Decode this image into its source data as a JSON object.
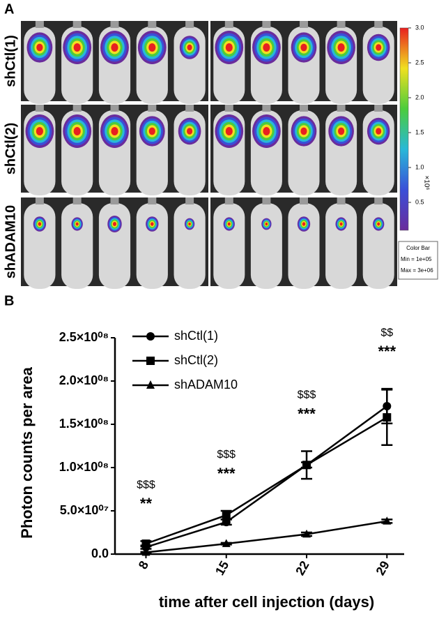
{
  "panel_a": {
    "label": "A",
    "row_labels": [
      "shCtl(1)",
      "shCtl(2)",
      "shADAM10"
    ],
    "colorbar": {
      "lim": [
        0.1,
        3.0
      ],
      "ticks": [
        0.5,
        {
          "value": 1,
          "label": "1.0"
        },
        1.5,
        {
          "value": 2,
          "label": "2.0"
        },
        2.5,
        {
          "value": 3,
          "label": "3.0"
        }
      ],
      "unit": "×10⁶",
      "title": "Color Bar",
      "min_text": "Min = 1e+05",
      "max_text": "Max = 3e+06"
    }
  },
  "chart_data": {
    "type": "line",
    "panel_label": "B",
    "ylabel": "Photon counts per area",
    "xlabel": "time after cell injection (days)",
    "x": [
      8,
      15,
      22,
      29
    ],
    "xlim": [
      5.3,
      30.5
    ],
    "xticks": [
      8,
      15,
      22,
      29
    ],
    "ylim": [
      0,
      250000000
    ],
    "yticks": [
      {
        "value": 0,
        "label": "0.0"
      },
      {
        "value": 50000000,
        "label": "5.0×10⁰⁷"
      },
      {
        "value": 100000000,
        "label": "1.0×10⁰⁸"
      },
      {
        "value": 150000000,
        "label": "1.5×10⁰⁸"
      },
      {
        "value": 200000000,
        "label": "2.0×10⁰⁸"
      },
      {
        "value": 250000000,
        "label": "2.5×10⁰⁸"
      }
    ],
    "series": [
      {
        "name": "shCtl(1)",
        "color": "#000000",
        "marker": "circle",
        "values": [
          8000000,
          37000000,
          103000000,
          171000000
        ],
        "errors": [
          2000000,
          3000000,
          3000000,
          20000000
        ]
      },
      {
        "name": "shCtl(2)",
        "color": "#000000",
        "marker": "square",
        "values": [
          12000000,
          45000000,
          103000000,
          158000000
        ],
        "errors": [
          3000000,
          5000000,
          16000000,
          32000000
        ]
      },
      {
        "name": "shADAM10",
        "color": "#000000",
        "marker": "triangle",
        "values": [
          2000000,
          12000000,
          23000000,
          38000000
        ],
        "errors": [
          500000,
          1000000,
          2000000,
          2000000
        ]
      }
    ],
    "annotations": [
      {
        "x": 8,
        "top": "$$$",
        "bottom": "**"
      },
      {
        "x": 15,
        "top": "$$$",
        "bottom": "***"
      },
      {
        "x": 22,
        "top": "$$$",
        "bottom": "***"
      },
      {
        "x": 29,
        "top": "$$",
        "bottom": "***"
      }
    ]
  }
}
